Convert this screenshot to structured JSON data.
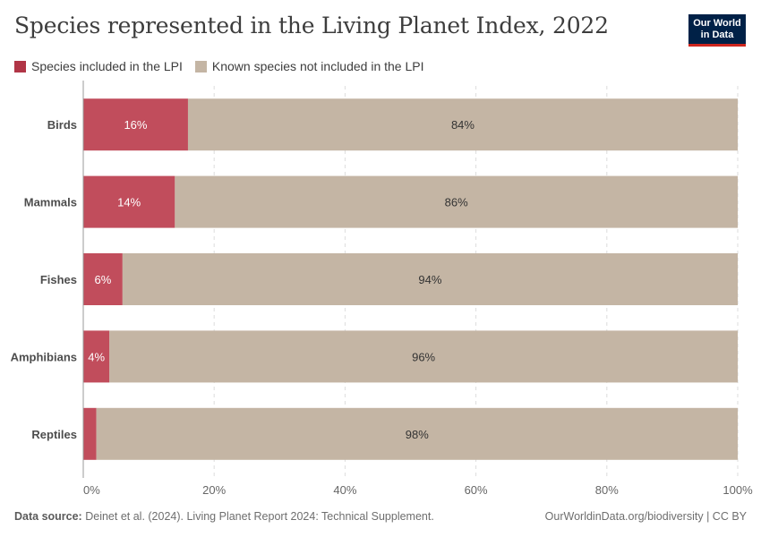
{
  "title": "Species represented in the Living Planet Index, 2022",
  "logo": {
    "line1": "Our World",
    "line2": "in Data"
  },
  "footer": {
    "source_label": "Data source:",
    "source_text": "Deinet et al. (2024). Living Planet Report 2024: Technical Supplement.",
    "right_text": "OurWorldinData.org/biodiversity | CC BY"
  },
  "colors": {
    "included": "#b13546",
    "not_included": "#c4b5a4",
    "included_bar": "#c14d5c"
  },
  "chart_data": {
    "type": "bar",
    "orientation": "horizontal",
    "stacked": true,
    "title": "Species represented in the Living Planet Index, 2022",
    "categories": [
      "Birds",
      "Mammals",
      "Fishes",
      "Amphibians",
      "Reptiles"
    ],
    "series": [
      {
        "name": "Species included in the LPI",
        "values": [
          16,
          14,
          6,
          4,
          2
        ],
        "labels": [
          "16%",
          "14%",
          "6%",
          "4%",
          ""
        ]
      },
      {
        "name": "Known species not included in the LPI",
        "values": [
          84,
          86,
          94,
          96,
          98
        ],
        "labels": [
          "84%",
          "86%",
          "94%",
          "96%",
          "98%"
        ]
      }
    ],
    "xlim": [
      0,
      100
    ],
    "xticks": [
      "0%",
      "20%",
      "40%",
      "60%",
      "80%",
      "100%"
    ],
    "grid": "vertical-dashed",
    "legend_position": "top-left"
  }
}
